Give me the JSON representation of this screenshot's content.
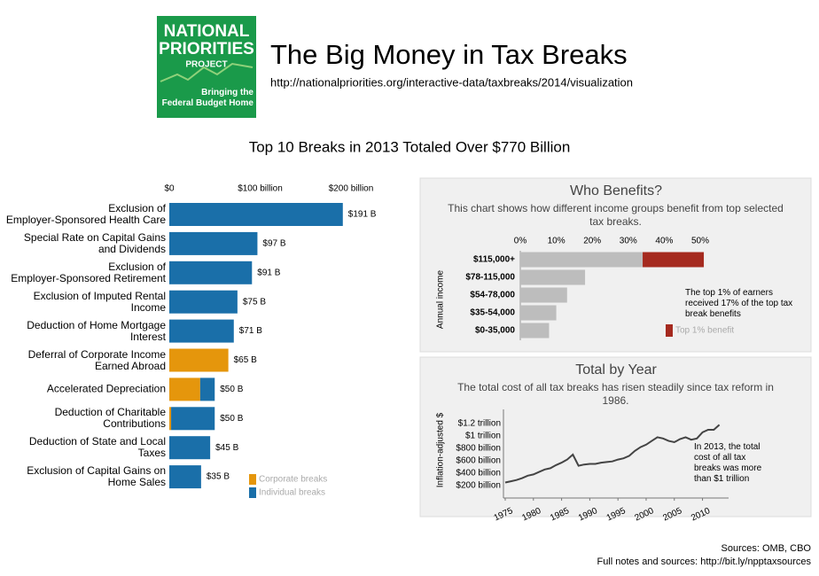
{
  "header": {
    "logo_lines": [
      "NATIONAL",
      "PRIORITIES",
      "PROJECT"
    ],
    "logo_tagline": "Bringing the\nFederal Budget Home",
    "title": "The Big Money in Tax Breaks",
    "url": "http://nationalpriorities.org/interactive-data/taxbreaks/2014/visualization"
  },
  "chart_data": [
    {
      "type": "hbar",
      "title": "Top 10 Breaks in 2013 Totaled Over $770 Billion",
      "categories": [
        "Exclusion of\nEmployer-Sponsored Health Care",
        "Special Rate on Capital Gains\nand Dividends",
        "Exclusion of\nEmployer-Sponsored Retirement",
        "Exclusion of Imputed Rental\nIncome",
        "Deduction of Home Mortgage\nInterest",
        "Deferral of Corporate Income\nEarned Abroad",
        "Accelerated Depreciation",
        "Deduction of Charitable\nContributions",
        "Deduction of State and Local\nTaxes",
        "Exclusion of Capital Gains on\nHome Sales"
      ],
      "series": [
        {
          "name": "Corporate breaks",
          "color": "#e5960c",
          "values": [
            0,
            0,
            0,
            0,
            0,
            65,
            34,
            2,
            0,
            0
          ]
        },
        {
          "name": "Individual breaks",
          "color": "#1a6fa9",
          "values": [
            191,
            97,
            91,
            75,
            71,
            0,
            16,
            48,
            45,
            35
          ]
        }
      ],
      "totals": [
        191,
        97,
        91,
        75,
        71,
        65,
        50,
        50,
        45,
        35
      ],
      "total_labels": [
        "$191 B",
        "$97 B",
        "$91 B",
        "$75 B",
        "$71 B",
        "$65 B",
        "$50 B",
        "$50 B",
        "$45 B",
        "$35 B"
      ],
      "xlim": [
        0,
        200
      ],
      "xticks": [
        {
          "value": 0,
          "label": "$0"
        },
        {
          "value": 100,
          "label": "$100 billion"
        },
        {
          "value": 200,
          "label": "$200 billion"
        }
      ],
      "legend": "bottom-right"
    },
    {
      "type": "hbar",
      "title": "Who Benefits?",
      "subtitle": "This chart shows how different income groups benefit from top selected\ntax breaks.",
      "categories": [
        "$115,000+",
        "$78-115,000",
        "$54-78,000",
        "$35-54,000",
        "$0-35,000"
      ],
      "series": [
        {
          "color": "#bdbdbd",
          "values": [
            34,
            18,
            13,
            10,
            8
          ]
        },
        {
          "name": "Top 1% benefit",
          "color": "#a52a1f",
          "values": [
            17,
            null,
            null,
            null,
            null
          ]
        }
      ],
      "xlim": [
        0,
        50
      ],
      "xticks": [
        {
          "value": 0,
          "label": "0%"
        },
        {
          "value": 10,
          "label": "10%"
        },
        {
          "value": 20,
          "label": "20%"
        },
        {
          "value": 30,
          "label": "30%"
        },
        {
          "value": 40,
          "label": "40%"
        },
        {
          "value": 50,
          "label": "50%"
        }
      ],
      "y_label": "Annual income",
      "annotation": "The top 1% of earners\nreceived 17% of the top tax\nbreak benefits"
    },
    {
      "type": "line",
      "title": "Total by Year",
      "subtitle": "The total cost of all tax breaks has risen steadily since tax reform in\n1986.",
      "x": [
        1975,
        1976,
        1977,
        1978,
        1979,
        1980,
        1981,
        1982,
        1983,
        1984,
        1985,
        1986,
        1987,
        1988,
        1989,
        1990,
        1991,
        1992,
        1993,
        1994,
        1995,
        1996,
        1997,
        1998,
        1999,
        2000,
        2001,
        2002,
        2003,
        2004,
        2005,
        2006,
        2007,
        2008,
        2009,
        2010,
        2011,
        2012,
        2013
      ],
      "values": [
        250,
        270,
        290,
        320,
        360,
        380,
        420,
        460,
        480,
        530,
        570,
        620,
        700,
        520,
        540,
        550,
        550,
        570,
        580,
        590,
        620,
        640,
        680,
        760,
        820,
        860,
        920,
        980,
        960,
        920,
        900,
        950,
        980,
        940,
        960,
        1060,
        1100,
        1100,
        1180
      ],
      "color": "#444444",
      "xlim": [
        1975,
        2014
      ],
      "xticks": [
        1975,
        1980,
        1985,
        1990,
        1995,
        2000,
        2005,
        2010
      ],
      "ylim": [
        0,
        1400
      ],
      "yticks": [
        {
          "value": 200,
          "label": "$200 billion"
        },
        {
          "value": 400,
          "label": "$400 billion"
        },
        {
          "value": 600,
          "label": "$600 billion"
        },
        {
          "value": 800,
          "label": "$800 billion"
        },
        {
          "value": 1000,
          "label": "$1 trillion"
        },
        {
          "value": 1200,
          "label": "$1.2 trillion"
        }
      ],
      "y_label": "Inflation-adjusted $",
      "annotation": "In 2013, the total\ncost of all tax\nbreaks was more\nthan $1 trillion"
    }
  ],
  "footer": {
    "sources": "Sources: OMB, CBO",
    "notes": "Full notes and sources: http://bit.ly/npptaxsources"
  }
}
